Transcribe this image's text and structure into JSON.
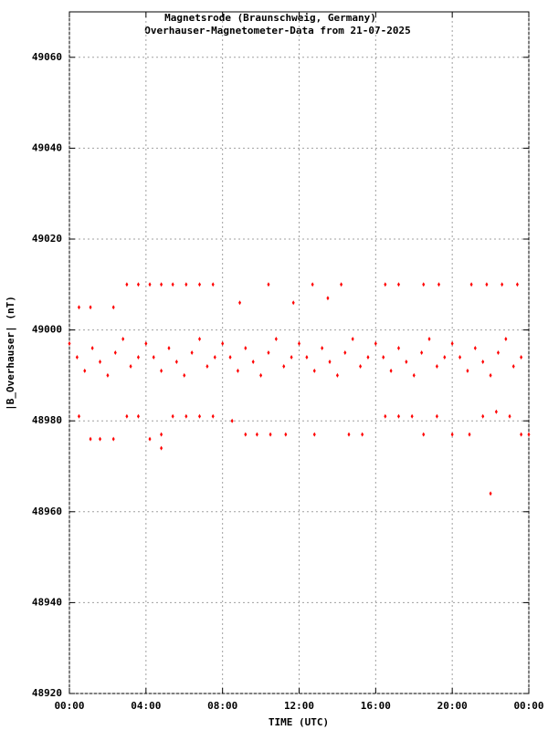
{
  "chart_data": {
    "type": "scatter",
    "title": "Magnetsrode (Braunschweig, Germany)",
    "subtitle": "Overhauser-Magnetometer-Data from 21-07-2025",
    "x_label": "TIME (UTC)",
    "y_label": "|B_Overhauser| (nT)",
    "color": "#ff0000",
    "grid": true,
    "xlim": [
      0,
      24
    ],
    "xticks": [
      {
        "value": 0,
        "label": "00:00"
      },
      {
        "value": 4,
        "label": "04:00"
      },
      {
        "value": 8,
        "label": "08:00"
      },
      {
        "value": 12,
        "label": "12:00"
      },
      {
        "value": 16,
        "label": "16:00"
      },
      {
        "value": 20,
        "label": "20:00"
      },
      {
        "value": 24,
        "label": "00:00"
      }
    ],
    "ylim": [
      48920,
      49070
    ],
    "yticks": [
      48920,
      48940,
      48960,
      48980,
      49000,
      49020,
      49040,
      49060
    ],
    "x": [
      0.0,
      0.4,
      0.8,
      1.2,
      1.6,
      2.0,
      2.4,
      2.8,
      3.2,
      3.6,
      4.0,
      4.4,
      4.8,
      5.2,
      5.6,
      6.0,
      6.4,
      6.8,
      7.2,
      7.6,
      8.0,
      8.4,
      8.8,
      9.2,
      9.6,
      10.0,
      10.4,
      10.8,
      11.2,
      11.6,
      12.0,
      12.4,
      12.8,
      13.2,
      13.6,
      14.0,
      14.4,
      14.8,
      15.2,
      15.6,
      16.0,
      16.4,
      16.8,
      17.2,
      17.6,
      18.0,
      18.4,
      18.8,
      19.2,
      19.6,
      20.0,
      20.4,
      20.8,
      21.2,
      21.6,
      22.0,
      22.4,
      22.8,
      23.2,
      23.6,
      0.5,
      1.1,
      2.3,
      3.0,
      3.6,
      4.2,
      4.8,
      5.4,
      6.1,
      6.8,
      7.5,
      8.9,
      10.4,
      11.7,
      12.7,
      13.5,
      14.2,
      16.5,
      17.2,
      18.5,
      19.3,
      21.0,
      21.8,
      22.6,
      23.4,
      0.5,
      1.1,
      1.6,
      2.3,
      3.0,
      3.6,
      4.2,
      4.8,
      5.4,
      6.1,
      6.8,
      7.5,
      8.5,
      9.2,
      9.8,
      10.5,
      11.3,
      12.8,
      14.6,
      15.3,
      16.5,
      17.2,
      17.9,
      18.5,
      19.2,
      20.0,
      20.9,
      21.6,
      22.3,
      23.0,
      23.6,
      24.0,
      22.0,
      4.8
    ],
    "values": [
      48997,
      48994,
      48991,
      48996,
      48993,
      48990,
      48995,
      48998,
      48992,
      48994,
      48997,
      48994,
      48991,
      48996,
      48993,
      48990,
      48995,
      48998,
      48992,
      48994,
      48997,
      48994,
      48991,
      48996,
      48993,
      48990,
      48995,
      48998,
      48992,
      48994,
      48997,
      48994,
      48991,
      48996,
      48993,
      48990,
      48995,
      48998,
      48992,
      48994,
      48997,
      48994,
      48991,
      48996,
      48993,
      48990,
      48995,
      48998,
      48992,
      48994,
      48997,
      48994,
      48991,
      48996,
      48993,
      48990,
      48995,
      48998,
      48992,
      48994,
      49005,
      49005,
      49005,
      49010,
      49010,
      49010,
      49010,
      49010,
      49010,
      49010,
      49010,
      49006,
      49010,
      49006,
      49010,
      49007,
      49010,
      49010,
      49010,
      49010,
      49010,
      49010,
      49010,
      49010,
      49010,
      48981,
      48976,
      48976,
      48976,
      48981,
      48981,
      48976,
      48977,
      48981,
      48981,
      48981,
      48981,
      48980,
      48977,
      48977,
      48977,
      48977,
      48977,
      48977,
      48977,
      48981,
      48981,
      48981,
      48977,
      48981,
      48977,
      48977,
      48981,
      48982,
      48981,
      48977,
      48977,
      48964,
      48974
    ]
  }
}
